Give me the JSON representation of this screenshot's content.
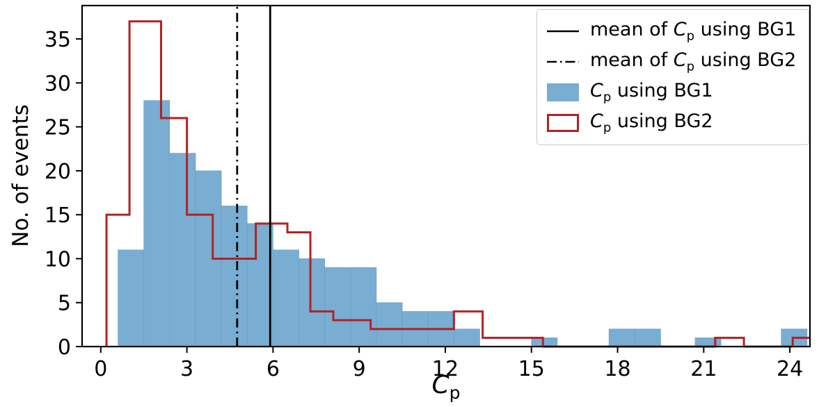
{
  "chart_data": {
    "type": "histogram",
    "title": "",
    "xlabel_sym": "C",
    "xlabel_sub": "p",
    "ylabel": "No. of events",
    "xlim": [
      -0.65,
      24.7
    ],
    "ylim": [
      0,
      38.8
    ],
    "xticks": [
      0,
      3,
      6,
      9,
      12,
      15,
      18,
      21,
      24
    ],
    "yticks": [
      0,
      5,
      10,
      15,
      20,
      25,
      30,
      35
    ],
    "grid": false,
    "legend_position": "upper right",
    "series": [
      {
        "name": "Cp using BG1",
        "style": "filled-bars",
        "color": "#79add2",
        "edge_color": "#659cc4",
        "bars": [
          {
            "x0": 0.6,
            "x1": 1.5,
            "h": 11
          },
          {
            "x0": 1.5,
            "x1": 2.4,
            "h": 28
          },
          {
            "x0": 2.4,
            "x1": 3.3,
            "h": 22
          },
          {
            "x0": 3.3,
            "x1": 4.2,
            "h": 20
          },
          {
            "x0": 4.2,
            "x1": 5.1,
            "h": 16
          },
          {
            "x0": 5.1,
            "x1": 6.0,
            "h": 14
          },
          {
            "x0": 6.0,
            "x1": 6.9,
            "h": 11
          },
          {
            "x0": 6.9,
            "x1": 7.8,
            "h": 10
          },
          {
            "x0": 7.8,
            "x1": 8.7,
            "h": 9
          },
          {
            "x0": 8.7,
            "x1": 9.6,
            "h": 9
          },
          {
            "x0": 9.6,
            "x1": 10.5,
            "h": 5
          },
          {
            "x0": 10.5,
            "x1": 11.4,
            "h": 4
          },
          {
            "x0": 11.4,
            "x1": 12.3,
            "h": 4
          },
          {
            "x0": 12.3,
            "x1": 13.2,
            "h": 2
          },
          {
            "x0": 15.0,
            "x1": 15.9,
            "h": 1
          },
          {
            "x0": 17.7,
            "x1": 18.6,
            "h": 2
          },
          {
            "x0": 18.6,
            "x1": 19.5,
            "h": 2
          },
          {
            "x0": 20.7,
            "x1": 21.6,
            "h": 1
          },
          {
            "x0": 23.7,
            "x1": 24.6,
            "h": 2
          }
        ]
      },
      {
        "name": "Cp using BG2",
        "style": "step-outline",
        "color": "#b22222",
        "bars": [
          {
            "x0": 0.2,
            "x1": 1.0,
            "h": 15
          },
          {
            "x0": 1.0,
            "x1": 2.1,
            "h": 37
          },
          {
            "x0": 2.1,
            "x1": 3.0,
            "h": 26
          },
          {
            "x0": 3.0,
            "x1": 3.9,
            "h": 15
          },
          {
            "x0": 3.9,
            "x1": 5.4,
            "h": 10
          },
          {
            "x0": 5.4,
            "x1": 6.5,
            "h": 14
          },
          {
            "x0": 6.5,
            "x1": 7.3,
            "h": 13
          },
          {
            "x0": 7.3,
            "x1": 8.1,
            "h": 4
          },
          {
            "x0": 8.1,
            "x1": 9.4,
            "h": 3
          },
          {
            "x0": 9.4,
            "x1": 12.3,
            "h": 2
          },
          {
            "x0": 12.3,
            "x1": 13.3,
            "h": 4
          },
          {
            "x0": 13.3,
            "x1": 15.4,
            "h": 1
          },
          {
            "x0": 15.4,
            "x1": 21.4,
            "h": 0
          },
          {
            "x0": 21.4,
            "x1": 22.4,
            "h": 1
          },
          {
            "x0": 22.4,
            "x1": 24.1,
            "h": 0
          },
          {
            "x0": 24.1,
            "x1": 24.7,
            "h": 1
          }
        ]
      }
    ],
    "vlines": [
      {
        "name": "mean of Cp using BG1",
        "x": 5.9,
        "style": "solid",
        "color": "#000000"
      },
      {
        "name": "mean of Cp using BG2",
        "x": 4.75,
        "style": "dashdot",
        "color": "#000000"
      }
    ]
  },
  "legend": {
    "entries": [
      {
        "prefix": "mean of ",
        "sym": "C",
        "sub": "p",
        "suffix": " using BG1",
        "swatch": "line-solid"
      },
      {
        "prefix": "mean of ",
        "sym": "C",
        "sub": "p",
        "suffix": " using BG2",
        "swatch": "line-dashdot"
      },
      {
        "prefix": "",
        "sym": "C",
        "sub": "p",
        "suffix": " using BG1",
        "swatch": "patch-filled"
      },
      {
        "prefix": "",
        "sym": "C",
        "sub": "p",
        "suffix": " using BG2",
        "swatch": "patch-outline"
      }
    ]
  }
}
